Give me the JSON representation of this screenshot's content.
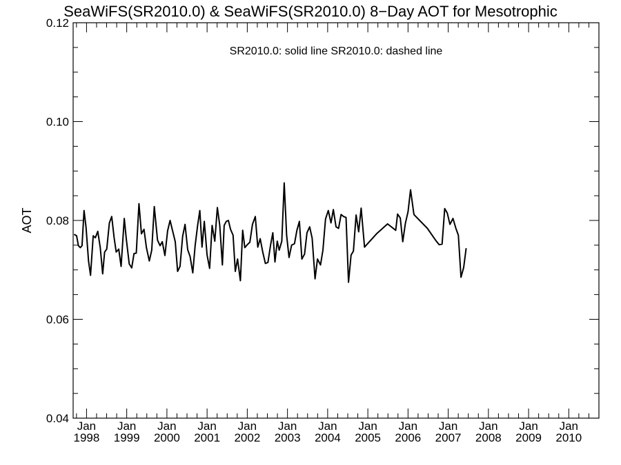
{
  "chart_data": {
    "type": "line",
    "title": "SeaWiFS(SR2010.0) & SeaWiFS(SR2010.0) 8−Day AOT for Mesotrophic",
    "subtitle": "SR2010.0: solid line   SR2010.0: dashed line",
    "xlabel": "",
    "ylabel": "AOT",
    "ylim": [
      0.04,
      0.12
    ],
    "xlim": [
      "1997-09",
      "2010-10"
    ],
    "y_ticks": [
      "0.04",
      "0.06",
      "0.08",
      "0.10",
      "0.12"
    ],
    "x_ticks": [
      {
        "month": "Jan",
        "year": "1998",
        "date": "1998-01"
      },
      {
        "month": "Jan",
        "year": "1999",
        "date": "1999-01"
      },
      {
        "month": "Jan",
        "year": "2000",
        "date": "2000-01"
      },
      {
        "month": "Jan",
        "year": "2001",
        "date": "2001-01"
      },
      {
        "month": "Jan",
        "year": "2002",
        "date": "2002-01"
      },
      {
        "month": "Jan",
        "year": "2003",
        "date": "2003-01"
      },
      {
        "month": "Jan",
        "year": "2004",
        "date": "2004-01"
      },
      {
        "month": "Jan",
        "year": "2005",
        "date": "2005-01"
      },
      {
        "month": "Jan",
        "year": "2006",
        "date": "2006-01"
      },
      {
        "month": "Jan",
        "year": "2007",
        "date": "2007-01"
      },
      {
        "month": "Jan",
        "year": "2008",
        "date": "2008-01"
      },
      {
        "month": "Jan",
        "year": "2009",
        "date": "2009-01"
      },
      {
        "month": "Jan",
        "year": "2010",
        "date": "2010-01"
      }
    ],
    "grid": false,
    "series": [
      {
        "line_style": "solid",
        "color": "#000000",
        "points": [
          [
            "1997-09-10",
            0.0772
          ],
          [
            "1997-10-02",
            0.0769
          ],
          [
            "1997-10-18",
            0.0749
          ],
          [
            "1997-11-05",
            0.0745
          ],
          [
            "1997-11-21",
            0.0749
          ],
          [
            "1997-12-09",
            0.082
          ],
          [
            "1997-12-27",
            0.0786
          ],
          [
            "1998-01-19",
            0.0718
          ],
          [
            "1998-02-07",
            0.0689
          ],
          [
            "1998-03-01",
            0.0769
          ],
          [
            "1998-03-20",
            0.0765
          ],
          [
            "1998-04-12",
            0.0778
          ],
          [
            "1998-05-04",
            0.0745
          ],
          [
            "1998-05-26",
            0.0692
          ],
          [
            "1998-06-13",
            0.0736
          ],
          [
            "1998-07-02",
            0.0742
          ],
          [
            "1998-07-26",
            0.0795
          ],
          [
            "1998-08-17",
            0.0808
          ],
          [
            "1998-09-08",
            0.0765
          ],
          [
            "1998-09-27",
            0.0736
          ],
          [
            "1998-10-20",
            0.0742
          ],
          [
            "1998-11-11",
            0.0707
          ],
          [
            "1998-12-09",
            0.0804
          ],
          [
            "1998-12-27",
            0.0763
          ],
          [
            "1999-01-24",
            0.0712
          ],
          [
            "1999-02-16",
            0.0704
          ],
          [
            "1999-03-06",
            0.0733
          ],
          [
            "1999-03-27",
            0.0734
          ],
          [
            "1999-04-21",
            0.0834
          ],
          [
            "1999-05-13",
            0.0773
          ],
          [
            "1999-06-06",
            0.0782
          ],
          [
            "1999-06-28",
            0.0745
          ],
          [
            "1999-07-24",
            0.0718
          ],
          [
            "1999-08-15",
            0.074
          ],
          [
            "1999-09-08",
            0.0828
          ],
          [
            "1999-10-07",
            0.076
          ],
          [
            "1999-10-30",
            0.0749
          ],
          [
            "1999-11-20",
            0.0757
          ],
          [
            "1999-12-13",
            0.0729
          ],
          [
            "2000-01-07",
            0.0779
          ],
          [
            "2000-01-30",
            0.08
          ],
          [
            "2000-02-19",
            0.0782
          ],
          [
            "2000-03-16",
            0.0757
          ],
          [
            "2000-04-07",
            0.0697
          ],
          [
            "2000-04-29",
            0.0707
          ],
          [
            "2000-05-22",
            0.0768
          ],
          [
            "2000-06-14",
            0.0792
          ],
          [
            "2000-07-07",
            0.0741
          ],
          [
            "2000-07-29",
            0.0727
          ],
          [
            "2000-08-23",
            0.0694
          ],
          [
            "2000-09-14",
            0.0749
          ],
          [
            "2000-10-07",
            0.0791
          ],
          [
            "2000-10-26",
            0.082
          ],
          [
            "2000-11-16",
            0.0746
          ],
          [
            "2000-12-06",
            0.0798
          ],
          [
            "2001-01-01",
            0.073
          ],
          [
            "2001-01-24",
            0.0703
          ],
          [
            "2001-02-16",
            0.079
          ],
          [
            "2001-03-10",
            0.0758
          ],
          [
            "2001-04-03",
            0.0826
          ],
          [
            "2001-04-25",
            0.079
          ],
          [
            "2001-05-18",
            0.071
          ],
          [
            "2001-06-04",
            0.079
          ],
          [
            "2001-06-23",
            0.0798
          ],
          [
            "2001-07-12",
            0.08
          ],
          [
            "2001-08-01",
            0.0782
          ],
          [
            "2001-08-24",
            0.077
          ],
          [
            "2001-09-14",
            0.0697
          ],
          [
            "2001-10-04",
            0.0722
          ],
          [
            "2001-10-30",
            0.0678
          ],
          [
            "2001-11-20",
            0.078
          ],
          [
            "2001-12-09",
            0.0745
          ],
          [
            "2002-01-01",
            0.0751
          ],
          [
            "2002-01-24",
            0.0756
          ],
          [
            "2002-02-18",
            0.0792
          ],
          [
            "2002-03-13",
            0.0808
          ],
          [
            "2002-04-05",
            0.0746
          ],
          [
            "2002-04-27",
            0.0763
          ],
          [
            "2002-05-20",
            0.0736
          ],
          [
            "2002-06-13",
            0.0713
          ],
          [
            "2002-07-06",
            0.0715
          ],
          [
            "2002-07-30",
            0.075
          ],
          [
            "2002-08-20",
            0.0775
          ],
          [
            "2002-09-09",
            0.0716
          ],
          [
            "2002-09-30",
            0.0758
          ],
          [
            "2002-10-17",
            0.074
          ],
          [
            "2002-11-10",
            0.0758
          ],
          [
            "2002-12-02",
            0.0876
          ],
          [
            "2002-12-24",
            0.077
          ],
          [
            "2003-01-15",
            0.0725
          ],
          [
            "2003-02-08",
            0.075
          ],
          [
            "2003-03-04",
            0.0753
          ],
          [
            "2003-03-26",
            0.078
          ],
          [
            "2003-04-18",
            0.0798
          ],
          [
            "2003-05-10",
            0.0722
          ],
          [
            "2003-06-04",
            0.0732
          ],
          [
            "2003-06-26",
            0.0775
          ],
          [
            "2003-07-20",
            0.0787
          ],
          [
            "2003-08-12",
            0.0764
          ],
          [
            "2003-09-08",
            0.0682
          ],
          [
            "2003-09-30",
            0.0722
          ],
          [
            "2003-10-27",
            0.071
          ],
          [
            "2003-11-19",
            0.074
          ],
          [
            "2003-12-12",
            0.0803
          ],
          [
            "2004-01-07",
            0.082
          ],
          [
            "2004-02-01",
            0.0795
          ],
          [
            "2004-02-22",
            0.0822
          ],
          [
            "2004-03-16",
            0.0787
          ],
          [
            "2004-04-09",
            0.0784
          ],
          [
            "2004-05-01",
            0.0812
          ],
          [
            "2004-05-24",
            0.0808
          ],
          [
            "2004-06-16",
            0.0806
          ],
          [
            "2004-07-08",
            0.0675
          ],
          [
            "2004-07-31",
            0.073
          ],
          [
            "2004-08-22",
            0.0738
          ],
          [
            "2004-09-16",
            0.0811
          ],
          [
            "2004-10-09",
            0.0777
          ],
          [
            "2004-11-01",
            0.0825
          ],
          [
            "2004-12-01",
            0.0746
          ],
          [
            "2005-03-19",
            0.0773
          ],
          [
            "2005-06-28",
            0.0793
          ],
          [
            "2005-09-11",
            0.078
          ],
          [
            "2005-09-28",
            0.0813
          ],
          [
            "2005-10-22",
            0.0805
          ],
          [
            "2005-11-14",
            0.0757
          ],
          [
            "2005-12-07",
            0.0794
          ],
          [
            "2006-01-01",
            0.0818
          ],
          [
            "2006-01-24",
            0.0862
          ],
          [
            "2006-02-24",
            0.0812
          ],
          [
            "2006-06-25",
            0.0784
          ],
          [
            "2006-09-08",
            0.076
          ],
          [
            "2006-10-10",
            0.0751
          ],
          [
            "2006-11-06",
            0.0752
          ],
          [
            "2006-11-30",
            0.0824
          ],
          [
            "2006-12-23",
            0.0815
          ],
          [
            "2007-01-17",
            0.0792
          ],
          [
            "2007-02-14",
            0.0804
          ],
          [
            "2007-03-10",
            0.0784
          ],
          [
            "2007-04-02",
            0.077
          ],
          [
            "2007-04-26",
            0.0685
          ],
          [
            "2007-05-20",
            0.0705
          ],
          [
            "2007-06-12",
            0.0744
          ]
        ]
      }
    ]
  }
}
